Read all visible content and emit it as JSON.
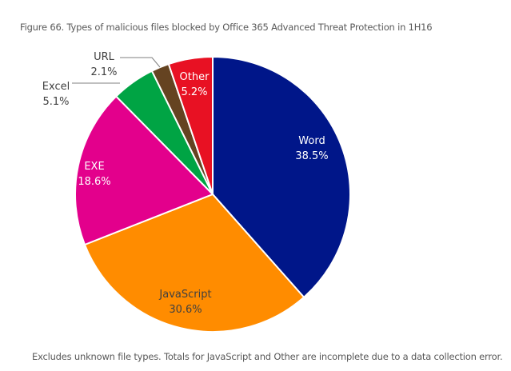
{
  "caption": "Figure 66. Types of malicious files blocked by Office 365 Advanced Threat Protection in 1H16",
  "footnote": "Excludes unknown file types. Totals for JavaScript and Other are incomplete due to a data collection error.",
  "chart_data": {
    "type": "pie",
    "title": "Figure 66. Types of malicious files blocked by Office 365 Advanced Threat Protection in 1H16",
    "slices": [
      {
        "label": "Word",
        "percent_label": "38.5%",
        "value": 38.5,
        "color": "#001689",
        "label_color": "#ffffff",
        "inside": true
      },
      {
        "label": "JavaScript",
        "percent_label": "30.6%",
        "value": 30.6,
        "color": "#FF8C00",
        "label_color": "#404040",
        "inside": true
      },
      {
        "label": "EXE",
        "percent_label": "18.6%",
        "value": 18.6,
        "color": "#E3008C",
        "label_color": "#ffffff",
        "inside": true
      },
      {
        "label": "Excel",
        "percent_label": "5.1%",
        "value": 5.1,
        "color": "#00A444",
        "label_color": "#404040",
        "inside": false
      },
      {
        "label": "URL",
        "percent_label": "2.1%",
        "value": 2.1,
        "color": "#654321",
        "label_color": "#404040",
        "inside": false
      },
      {
        "label": "Other",
        "percent_label": "5.2%",
        "value": 5.2,
        "color": "#E81123",
        "label_color": "#ffffff",
        "inside": true
      }
    ]
  }
}
